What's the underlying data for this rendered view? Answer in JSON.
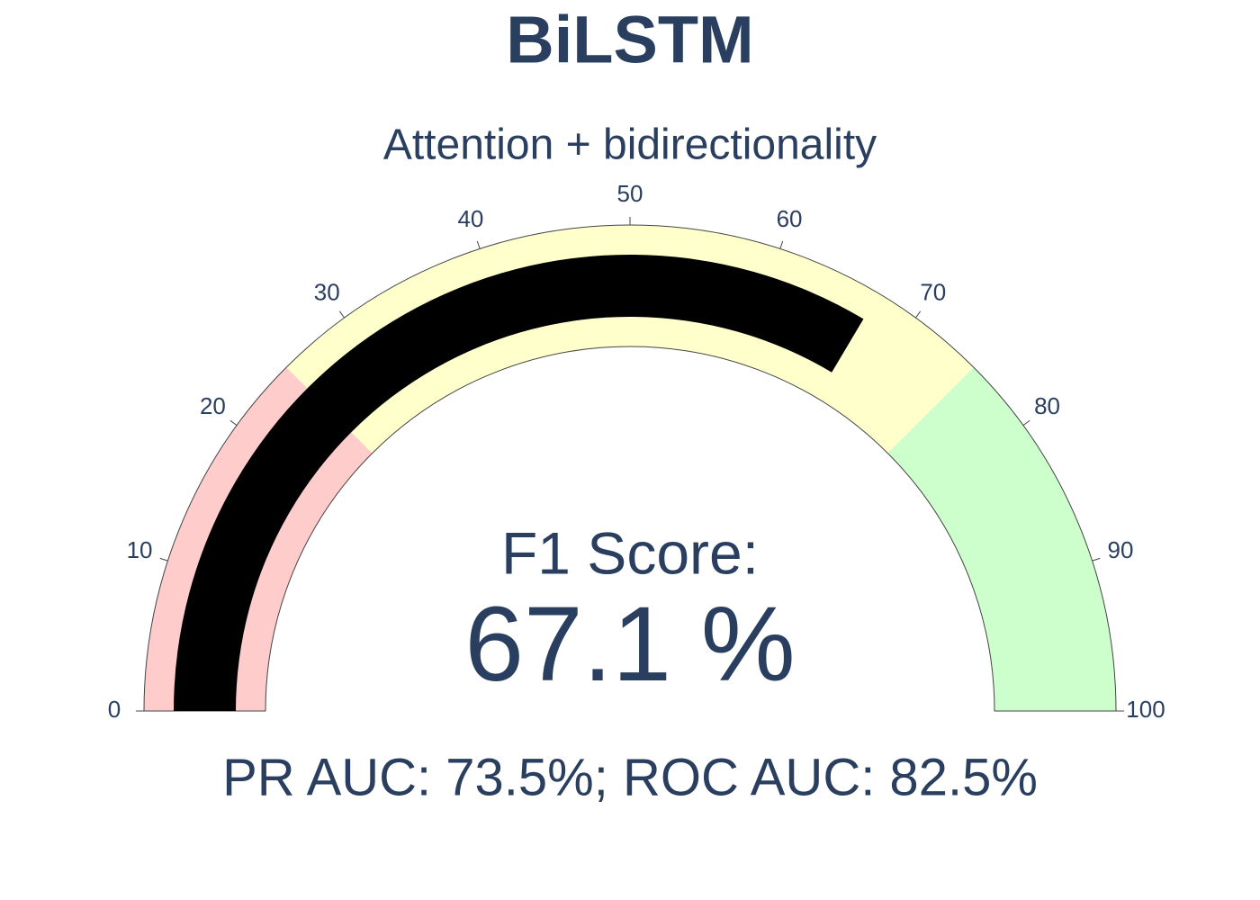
{
  "chart_data": {
    "type": "gauge",
    "title": "BiLSTM",
    "subtitle": "Attention + bidirectionality",
    "label": "F1 Score:",
    "value": 67.1,
    "value_label": "67.1 %",
    "annotation": "PR AUC: 73.5%; ROC AUC: 82.5%",
    "range": [
      0,
      100
    ],
    "ticks": [
      0,
      10,
      20,
      30,
      40,
      50,
      60,
      70,
      80,
      90,
      100
    ],
    "bar_color": "#000000",
    "steps": [
      {
        "range": [
          0,
          25
        ],
        "color": "#ffcccc"
      },
      {
        "range": [
          25,
          75
        ],
        "color": "#ffffcc"
      },
      {
        "range": [
          75,
          100
        ],
        "color": "#ccffcc"
      }
    ]
  }
}
